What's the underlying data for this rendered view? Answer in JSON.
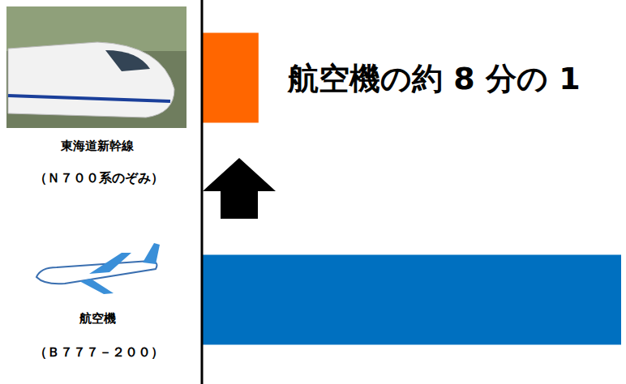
{
  "chart_data": {
    "type": "bar",
    "orientation": "horizontal",
    "categories": [
      "東海道新幹線",
      "航空機"
    ],
    "category_notes": [
      "（Ｎ７００系のぞみ）",
      "（Ｂ７７７－２００）"
    ],
    "values": [
      1,
      7.5
    ],
    "colors": [
      "#ff6600",
      "#0070c0"
    ],
    "xlim": [
      0,
      7.5
    ],
    "tick_labels": false,
    "annotation": "航空機の約 8 分の 1"
  }
}
